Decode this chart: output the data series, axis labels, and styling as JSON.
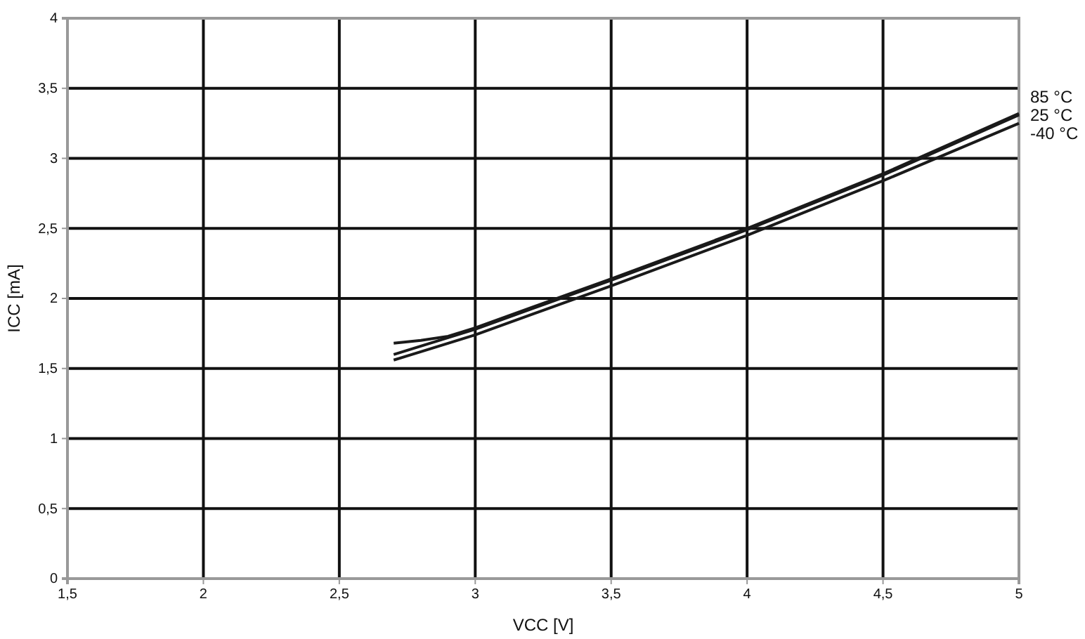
{
  "chart_data": {
    "type": "line",
    "xlabel": "VCC [V]",
    "ylabel": "ICC [mA]",
    "xlim": [
      1.5,
      5
    ],
    "ylim": [
      0,
      4
    ],
    "xticks": [
      {
        "value": 1.5,
        "label": "1,5"
      },
      2,
      {
        "value": 2.5,
        "label": "2,5"
      },
      3,
      {
        "value": 3.5,
        "label": "3,5"
      },
      4,
      {
        "value": 4.5,
        "label": "4,5"
      },
      5
    ],
    "yticks": [
      0,
      {
        "value": 0.5,
        "label": "0,5"
      },
      1,
      {
        "value": 1.5,
        "label": "1,5"
      },
      2,
      {
        "value": 2.5,
        "label": "2,5"
      },
      3,
      {
        "value": 3.5,
        "label": "3,5"
      },
      4
    ],
    "grid": true,
    "legend": false,
    "marker": "none",
    "line_style": "solid",
    "series": [
      {
        "name": "85 °C",
        "color": "#1a1a1a",
        "x": [
          2.7,
          2.8,
          2.9,
          3,
          3.5,
          4,
          4.5,
          5
        ],
        "values": [
          1.68,
          1.7,
          1.73,
          1.79,
          2.14,
          2.5,
          2.89,
          3.32
        ]
      },
      {
        "name": "25 °C",
        "color": "#1a1a1a",
        "x": [
          2.7,
          2.8,
          2.9,
          3,
          3.5,
          4,
          4.5,
          5
        ],
        "values": [
          1.6,
          1.66,
          1.72,
          1.78,
          2.13,
          2.49,
          2.88,
          3.31
        ]
      },
      {
        "name": "-40 °C",
        "color": "#1a1a1a",
        "x": [
          2.7,
          2.8,
          2.9,
          3,
          3.5,
          4,
          4.5,
          5
        ],
        "values": [
          1.56,
          1.62,
          1.68,
          1.74,
          2.09,
          2.45,
          2.84,
          3.25
        ]
      }
    ]
  }
}
